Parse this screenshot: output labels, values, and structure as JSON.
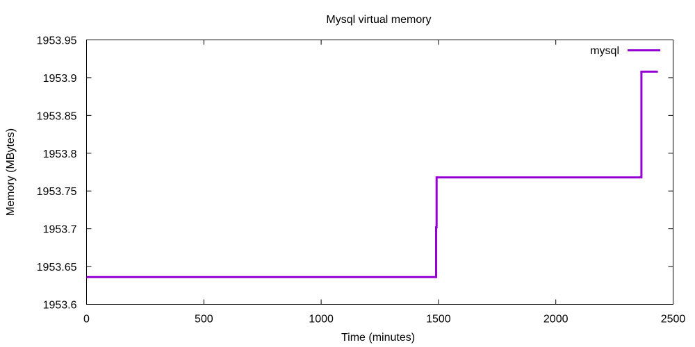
{
  "chart_data": {
    "type": "line",
    "title": "Mysql virtual memory",
    "xlabel": "Time (minutes)",
    "ylabel": "Memory (MBytes)",
    "xlim": [
      0,
      2500
    ],
    "ylim": [
      1953.6,
      1953.95
    ],
    "x_ticks": [
      0,
      500,
      1000,
      1500,
      2000,
      2500
    ],
    "x_tick_labels": [
      "0",
      "500",
      "1000",
      "1500",
      "2000",
      "2500"
    ],
    "y_ticks": [
      1953.6,
      1953.65,
      1953.7,
      1953.75,
      1953.8,
      1953.85,
      1953.9,
      1953.95
    ],
    "y_tick_labels": [
      "1953.6",
      "1953.65",
      "1953.7",
      "1953.75",
      "1953.8",
      "1953.85",
      "1953.9",
      "1953.95"
    ],
    "grid": false,
    "legend_position": "top-right",
    "series": [
      {
        "name": "mysql",
        "color": "#9400d3",
        "step": true,
        "points": [
          [
            0,
            1953.636
          ],
          [
            1490,
            1953.636
          ],
          [
            1490,
            1953.702
          ],
          [
            1492,
            1953.702
          ],
          [
            1492,
            1953.768
          ],
          [
            2365,
            1953.768
          ],
          [
            2365,
            1953.908
          ],
          [
            2435,
            1953.908
          ]
        ]
      }
    ]
  }
}
